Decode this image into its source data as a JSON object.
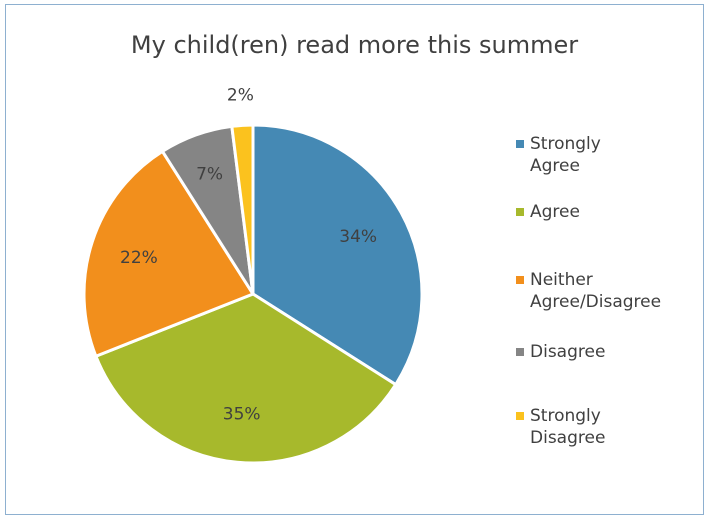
{
  "chart_data": {
    "type": "pie",
    "title": "My child(ren) read more this summer",
    "categories": [
      "Strongly Agree",
      "Agree",
      "Neither Agree/Disagree",
      "Disagree",
      "Strongly Disagree"
    ],
    "values": [
      34,
      35,
      22,
      7,
      2
    ],
    "data_labels": [
      "34%",
      "35%",
      "22%",
      "7%",
      "2%"
    ],
    "colors": [
      "#4589b4",
      "#a7b92c",
      "#f28f1c",
      "#858585",
      "#fbc21e"
    ],
    "legend_position": "right",
    "start_angle": "12 o'clock, clockwise"
  },
  "legend": {
    "items": [
      {
        "label": "Strongly Agree",
        "color": "#4589b4"
      },
      {
        "label": "Agree",
        "color": "#a7b92c"
      },
      {
        "label": "Neither\nAgree/Disagree",
        "color": "#f28f1c"
      },
      {
        "label": "Disagree",
        "color": "#858585"
      },
      {
        "label": "Strongly Disagree",
        "color": "#fbc21e"
      }
    ]
  }
}
